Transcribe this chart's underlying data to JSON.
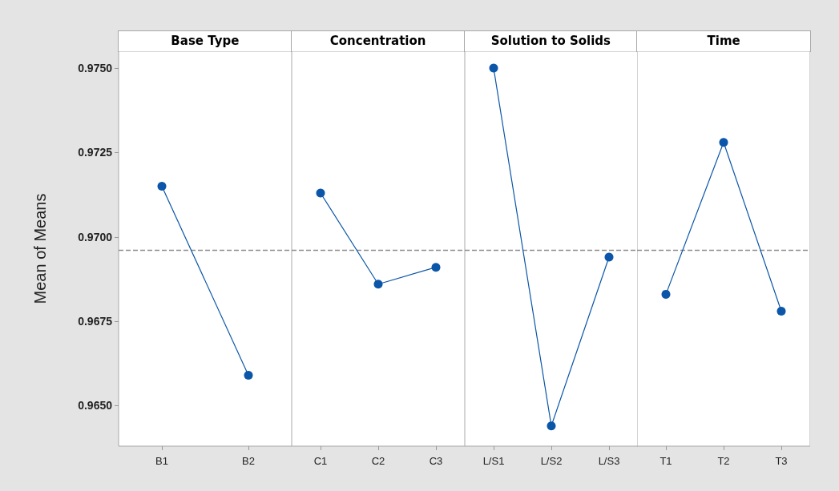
{
  "chart_data": [
    {
      "type": "line",
      "title": "Base Type",
      "ylabel": "Mean of Means",
      "categories": [
        "B1",
        "B2"
      ],
      "values": [
        0.9715,
        0.9659
      ],
      "color": "#0b56a8",
      "marker": "circle",
      "ylim": [
        0.9638,
        0.9755
      ],
      "yticks": [
        {
          "value": 0.965,
          "label": "0.9650"
        },
        {
          "value": 0.9675,
          "label": "0.9675"
        },
        {
          "value": 0.97,
          "label": "0.9700"
        },
        {
          "value": 0.9725,
          "label": "0.9725"
        },
        {
          "value": 0.975,
          "label": "0.9750"
        }
      ],
      "ref_lines": [
        {
          "axis": "y",
          "value": 0.9696,
          "color": "#8c8c8c",
          "line_style": "dashed"
        }
      ]
    },
    {
      "type": "line",
      "title": "Concentration",
      "categories": [
        "C1",
        "C2",
        "C3"
      ],
      "values": [
        0.9713,
        0.9686,
        0.9691
      ],
      "color": "#0b56a8",
      "marker": "circle",
      "ylim": [
        0.9638,
        0.9755
      ],
      "tick_labels": "x",
      "ref_lines": [
        {
          "axis": "y",
          "value": 0.9696,
          "color": "#8c8c8c",
          "line_style": "dashed"
        }
      ]
    },
    {
      "type": "line",
      "title": "Solution to Solids",
      "categories": [
        "L/S1",
        "L/S2",
        "L/S3"
      ],
      "values": [
        0.975,
        0.9644,
        0.9694
      ],
      "color": "#0b56a8",
      "marker": "circle",
      "ylim": [
        0.9638,
        0.9755
      ],
      "tick_labels": "x",
      "ref_lines": [
        {
          "axis": "y",
          "value": 0.9696,
          "color": "#8c8c8c",
          "line_style": "dashed"
        }
      ]
    },
    {
      "type": "line",
      "title": "Time",
      "categories": [
        "T1",
        "T2",
        "T3"
      ],
      "values": [
        0.9683,
        0.9728,
        0.9678
      ],
      "color": "#0b56a8",
      "marker": "circle",
      "ylim": [
        0.9638,
        0.9755
      ],
      "tick_labels": "x",
      "ref_lines": [
        {
          "axis": "y",
          "value": 0.9696,
          "color": "#8c8c8c",
          "line_style": "dashed"
        }
      ]
    }
  ]
}
